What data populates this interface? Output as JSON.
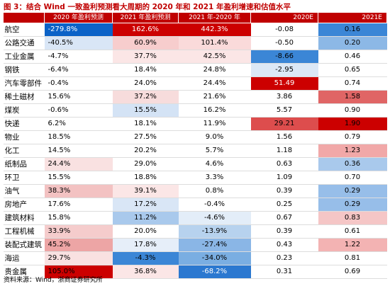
{
  "title": "图 3：结合 Wind 一致盈利预测看大周期的 2020 年和 2021 年盈利增速和估值水平",
  "header": [
    "",
    "2020 年盈利预测",
    "2021 年盈利预测",
    "2021 年-2020 年",
    "2020E",
    "2021E"
  ],
  "rows": [
    {
      "name": "航空",
      "v": [
        "-279.8%",
        "162.6%",
        "442.3%",
        "-0.08",
        "0.16"
      ],
      "bg": [
        "#0b62c7",
        "#cc0000",
        "#cc0000",
        "#ffffff",
        "#3b86d6"
      ],
      "fg": [
        "#ffffff",
        "#ffffff",
        "#ffffff",
        "#000000",
        "#000000"
      ]
    },
    {
      "name": "公路交通",
      "v": [
        "-40.5%",
        "60.9%",
        "101.4%",
        "-0.50",
        "0.20"
      ],
      "bg": [
        "#d9e6f6",
        "#f7cdcd",
        "#fadada",
        "#ffffff",
        "#8cb8e6"
      ],
      "fg": [
        "#000000",
        "#000000",
        "#000000",
        "#000000",
        "#000000"
      ]
    },
    {
      "name": "工业金属",
      "v": [
        "-4.7%",
        "37.7%",
        "42.5%",
        "-8.66",
        "0.46"
      ],
      "bg": [
        "#ffffff",
        "#fbe6e6",
        "#fbe6e6",
        "#3b86d6",
        "#ffffff"
      ],
      "fg": [
        "#000000",
        "#000000",
        "#000000",
        "#000000",
        "#000000"
      ]
    },
    {
      "name": "钢铁",
      "v": [
        "-6.4%",
        "18.4%",
        "24.8%",
        "-2.95",
        "0.65"
      ],
      "bg": [
        "#ffffff",
        "#ffffff",
        "#ffffff",
        "#dce8f6",
        "#ffffff"
      ],
      "fg": [
        "#000000",
        "#000000",
        "#000000",
        "#000000",
        "#000000"
      ]
    },
    {
      "name": "汽车零部件",
      "v": [
        "-0.4%",
        "24.0%",
        "24.4%",
        "51.49",
        "0.74"
      ],
      "bg": [
        "#ffffff",
        "#ffffff",
        "#ffffff",
        "#cc0000",
        "#ffffff"
      ],
      "fg": [
        "#000000",
        "#000000",
        "#000000",
        "#ffffff",
        "#000000"
      ]
    },
    {
      "name": "稀土磁材",
      "v": [
        "15.6%",
        "37.2%",
        "21.6%",
        "3.86",
        "1.58"
      ],
      "bg": [
        "#ffffff",
        "#f7dcdc",
        "#ffffff",
        "#ffffff",
        "#e06565"
      ],
      "fg": [
        "#000000",
        "#000000",
        "#000000",
        "#000000",
        "#000000"
      ]
    },
    {
      "name": "煤炭",
      "v": [
        "-0.6%",
        "15.5%",
        "16.2%",
        "5.57",
        "0.90"
      ],
      "bg": [
        "#ffffff",
        "#d4e3f5",
        "#ffffff",
        "#ffffff",
        "#ffffff"
      ],
      "fg": [
        "#000000",
        "#000000",
        "#000000",
        "#000000",
        "#000000"
      ]
    },
    {
      "name": "快递",
      "v": [
        "6.2%",
        "18.1%",
        "11.9%",
        "29.21",
        "1.90"
      ],
      "bg": [
        "#ffffff",
        "#ffffff",
        "#ffffff",
        "#dd4d4d",
        "#cc0000"
      ],
      "fg": [
        "#000000",
        "#000000",
        "#000000",
        "#000000",
        "#000000"
      ]
    },
    {
      "name": "物业",
      "v": [
        "18.5%",
        "27.5%",
        "9.0%",
        "1.56",
        "0.79"
      ],
      "bg": [
        "#ffffff",
        "#ffffff",
        "#ffffff",
        "#ffffff",
        "#ffffff"
      ],
      "fg": [
        "#000000",
        "#000000",
        "#000000",
        "#000000",
        "#000000"
      ]
    },
    {
      "name": "化工",
      "v": [
        "14.5%",
        "20.2%",
        "5.7%",
        "1.18",
        "1.23"
      ],
      "bg": [
        "#ffffff",
        "#ffffff",
        "#ffffff",
        "#ffffff",
        "#f1a8a8"
      ],
      "fg": [
        "#000000",
        "#000000",
        "#000000",
        "#000000",
        "#000000"
      ]
    },
    {
      "name": "纸制品",
      "v": [
        "24.4%",
        "29.0%",
        "4.6%",
        "0.63",
        "0.36"
      ],
      "bg": [
        "#f9e1e1",
        "#ffffff",
        "#ffffff",
        "#ffffff",
        "#a9c9ec"
      ],
      "fg": [
        "#000000",
        "#000000",
        "#000000",
        "#000000",
        "#000000"
      ]
    },
    {
      "name": "环卫",
      "v": [
        "15.5%",
        "18.8%",
        "3.3%",
        "1.09",
        "0.70"
      ],
      "bg": [
        "#ffffff",
        "#ffffff",
        "#ffffff",
        "#ffffff",
        "#ffffff"
      ],
      "fg": [
        "#000000",
        "#000000",
        "#000000",
        "#000000",
        "#000000"
      ]
    },
    {
      "name": "油气",
      "v": [
        "38.3%",
        "39.1%",
        "0.8%",
        "0.39",
        "0.29"
      ],
      "bg": [
        "#f3c2c2",
        "#fbe6e6",
        "#ffffff",
        "#ffffff",
        "#97bee9"
      ],
      "fg": [
        "#000000",
        "#000000",
        "#000000",
        "#000000",
        "#000000"
      ]
    },
    {
      "name": "房地产",
      "v": [
        "17.6%",
        "17.2%",
        "-0.4%",
        "0.25",
        "0.29"
      ],
      "bg": [
        "#ffffff",
        "#d9e6f6",
        "#ffffff",
        "#ffffff",
        "#97bee9"
      ],
      "fg": [
        "#000000",
        "#000000",
        "#000000",
        "#000000",
        "#000000"
      ]
    },
    {
      "name": "建筑材料",
      "v": [
        "15.8%",
        "11.2%",
        "-4.6%",
        "0.67",
        "0.83"
      ],
      "bg": [
        "#ffffff",
        "#a9c9ec",
        "#e3edf8",
        "#ffffff",
        "#f5c6c6"
      ],
      "fg": [
        "#000000",
        "#000000",
        "#000000",
        "#000000",
        "#000000"
      ]
    },
    {
      "name": "工程机械",
      "v": [
        "33.9%",
        "20.0%",
        "-13.9%",
        "0.39",
        "0.61"
      ],
      "bg": [
        "#f5cccc",
        "#ffffff",
        "#b7d2ee",
        "#ffffff",
        "#ffffff"
      ],
      "fg": [
        "#000000",
        "#000000",
        "#000000",
        "#000000",
        "#000000"
      ]
    },
    {
      "name": "装配式建筑",
      "v": [
        "45.2%",
        "17.8%",
        "-27.4%",
        "0.43",
        "1.22"
      ],
      "bg": [
        "#eda5a5",
        "#e6eef9",
        "#8ab6e6",
        "#ffffff",
        "#f3b3b3"
      ],
      "fg": [
        "#000000",
        "#000000",
        "#000000",
        "#000000",
        "#000000"
      ]
    },
    {
      "name": "海运",
      "v": [
        "29.7%",
        "-4.3%",
        "-34.0%",
        "0.23",
        "0.81"
      ],
      "bg": [
        "#f9e1e1",
        "#3b86d6",
        "#7aaee2",
        "#ffffff",
        "#ffffff"
      ],
      "fg": [
        "#000000",
        "#000000",
        "#000000",
        "#000000",
        "#000000"
      ]
    },
    {
      "name": "贵金属",
      "v": [
        "105.0%",
        "36.8%",
        "-68.2%",
        "0.31",
        "0.69"
      ],
      "bg": [
        "#cc0000",
        "#fbe6e6",
        "#2b78d0",
        "#ffffff",
        "#ffffff"
      ],
      "fg": [
        "#000000",
        "#000000",
        "#ffffff",
        "#000000",
        "#000000"
      ]
    }
  ],
  "align": [
    "lft",
    "num",
    "num",
    "num",
    "num"
  ],
  "footer": "资料来源：Wind，浙商证券研究所"
}
